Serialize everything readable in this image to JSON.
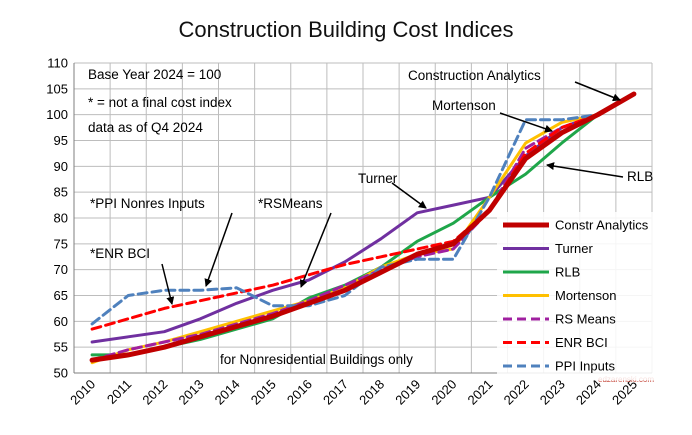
{
  "chart_data": {
    "type": "line",
    "title": "Construction Building Cost Indices",
    "xlabel": "",
    "ylabel": "",
    "ylim": [
      50,
      110
    ],
    "yticks": [
      50,
      55,
      60,
      65,
      70,
      75,
      80,
      85,
      90,
      95,
      100,
      105,
      110
    ],
    "x": [
      "2010",
      "2011",
      "2012",
      "2013",
      "2014",
      "2015",
      "2016",
      "2017",
      "2018",
      "2019",
      "2020",
      "2021",
      "2022",
      "2023",
      "2024",
      "2025"
    ],
    "grid": true,
    "legend_position": "right",
    "series": [
      {
        "name": "Constr Analytics",
        "color": "#c00000",
        "style": "solid-thick",
        "values": [
          52.5,
          53.5,
          55,
          57,
          59,
          61,
          63.5,
          66,
          69.5,
          73,
          75,
          81.5,
          91.5,
          96.5,
          100,
          104
        ]
      },
      {
        "name": "Turner",
        "color": "#7030a0",
        "style": "solid",
        "values": [
          56,
          57,
          58,
          60.5,
          63.5,
          66,
          68,
          71.5,
          76,
          81,
          82.5,
          84,
          92,
          97.5,
          100,
          null
        ]
      },
      {
        "name": "RLB",
        "color": "#1fa64a",
        "style": "solid",
        "values": [
          53.5,
          53.5,
          55,
          56.5,
          58.5,
          60.5,
          64.5,
          67,
          70.5,
          75.5,
          79,
          84,
          88.5,
          94.5,
          100,
          null
        ]
      },
      {
        "name": "Mortenson",
        "color": "#ffc000",
        "style": "solid",
        "values": [
          52,
          54.5,
          56,
          58,
          60,
          62,
          64,
          66.5,
          70.5,
          73,
          74,
          84,
          94.5,
          98.5,
          100,
          null
        ]
      },
      {
        "name": "RS Means",
        "color": "#a020a0",
        "style": "dash",
        "values": [
          52.5,
          54.5,
          56,
          57.5,
          59.5,
          61.5,
          64,
          67,
          70,
          72.5,
          74,
          81.5,
          93.5,
          97.5,
          100,
          null
        ]
      },
      {
        "name": "ENR BCI",
        "color": "#ff0000",
        "style": "dash",
        "values": [
          58.5,
          60.5,
          62.5,
          64,
          65.5,
          67,
          69,
          71,
          72.5,
          74,
          75.5,
          81.5,
          92.5,
          97.5,
          100,
          null
        ]
      },
      {
        "name": "PPI Inputs",
        "color": "#4f81bd",
        "style": "dash",
        "values": [
          59.5,
          65,
          66,
          66,
          66.5,
          63,
          63,
          65,
          70.5,
          72,
          72,
          84,
          99,
          99,
          100,
          null
        ]
      }
    ],
    "annotations": {
      "base_year": "Base Year 2024 = 100",
      "not_final": "* = not a final cost index",
      "data_as_of": "data as of Q4 2024",
      "scope": "for Nonresidential Buildings only",
      "credit": "edzarenski.com",
      "labels": [
        {
          "text": "Construction Analytics",
          "series": "Constr Analytics"
        },
        {
          "text": "Mortenson",
          "series": "Mortenson"
        },
        {
          "text": "Turner",
          "series": "Turner"
        },
        {
          "text": "RLB",
          "series": "RLB"
        },
        {
          "text": "*PPI Nonres Inputs",
          "series": "PPI Inputs"
        },
        {
          "text": "*RSMeans",
          "series": "RS Means"
        },
        {
          "text": "*ENR BCI",
          "series": "ENR BCI"
        }
      ]
    }
  }
}
